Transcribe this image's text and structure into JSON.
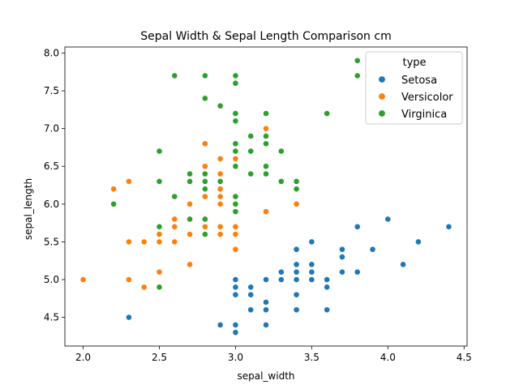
{
  "chart_data": {
    "type": "scatter",
    "title": "Sepal Width & Sepal Length Comparison cm",
    "xlabel": "sepal_width",
    "ylabel": "sepal_length",
    "xlim": [
      1.88,
      4.52
    ],
    "ylim": [
      4.12,
      8.08
    ],
    "xticks": [
      2.0,
      2.5,
      3.0,
      3.5,
      4.0,
      4.5
    ],
    "yticks": [
      4.5,
      5.0,
      5.5,
      6.0,
      6.5,
      7.0,
      7.5,
      8.0
    ],
    "grid": false,
    "legend": {
      "title": "type",
      "placement": "top-right"
    },
    "series": [
      {
        "name": "Setosa",
        "color": "#1f77b4",
        "points": [
          [
            3.5,
            5.1
          ],
          [
            3.0,
            4.9
          ],
          [
            3.2,
            4.7
          ],
          [
            3.1,
            4.6
          ],
          [
            3.6,
            5.0
          ],
          [
            3.9,
            5.4
          ],
          [
            3.4,
            4.6
          ],
          [
            3.4,
            5.0
          ],
          [
            2.9,
            4.4
          ],
          [
            3.1,
            4.9
          ],
          [
            3.7,
            5.4
          ],
          [
            3.4,
            4.8
          ],
          [
            3.0,
            4.8
          ],
          [
            3.0,
            4.3
          ],
          [
            4.0,
            5.8
          ],
          [
            4.4,
            5.7
          ],
          [
            3.9,
            5.4
          ],
          [
            3.5,
            5.1
          ],
          [
            3.8,
            5.7
          ],
          [
            3.8,
            5.1
          ],
          [
            3.4,
            5.4
          ],
          [
            3.7,
            5.1
          ],
          [
            3.6,
            4.6
          ],
          [
            3.3,
            5.1
          ],
          [
            3.4,
            4.8
          ],
          [
            3.0,
            5.0
          ],
          [
            3.4,
            5.0
          ],
          [
            3.5,
            5.2
          ],
          [
            3.4,
            5.2
          ],
          [
            3.2,
            4.7
          ],
          [
            3.1,
            4.8
          ],
          [
            3.4,
            5.4
          ],
          [
            4.1,
            5.2
          ],
          [
            4.2,
            5.5
          ],
          [
            3.1,
            4.9
          ],
          [
            3.2,
            5.0
          ],
          [
            3.5,
            5.5
          ],
          [
            3.6,
            4.9
          ],
          [
            3.0,
            4.4
          ],
          [
            3.4,
            5.1
          ],
          [
            3.5,
            5.0
          ],
          [
            2.3,
            4.5
          ],
          [
            3.2,
            4.4
          ],
          [
            3.5,
            5.0
          ],
          [
            3.8,
            5.1
          ],
          [
            3.0,
            4.8
          ],
          [
            3.8,
            5.1
          ],
          [
            3.2,
            4.6
          ],
          [
            3.7,
            5.3
          ],
          [
            3.3,
            5.0
          ]
        ]
      },
      {
        "name": "Versicolor",
        "color": "#ff7f0e",
        "points": [
          [
            3.2,
            7.0
          ],
          [
            3.2,
            6.4
          ],
          [
            3.1,
            6.9
          ],
          [
            2.3,
            5.5
          ],
          [
            2.8,
            6.5
          ],
          [
            2.8,
            5.7
          ],
          [
            3.3,
            6.3
          ],
          [
            2.4,
            4.9
          ],
          [
            2.9,
            6.6
          ],
          [
            2.7,
            5.2
          ],
          [
            2.0,
            5.0
          ],
          [
            3.0,
            5.9
          ],
          [
            2.2,
            6.0
          ],
          [
            2.9,
            6.1
          ],
          [
            2.9,
            5.6
          ],
          [
            3.1,
            6.7
          ],
          [
            3.0,
            5.6
          ],
          [
            2.7,
            5.8
          ],
          [
            2.2,
            6.2
          ],
          [
            2.5,
            5.6
          ],
          [
            3.2,
            5.9
          ],
          [
            2.8,
            6.1
          ],
          [
            2.5,
            6.3
          ],
          [
            2.8,
            6.1
          ],
          [
            2.9,
            6.4
          ],
          [
            3.0,
            6.6
          ],
          [
            2.8,
            6.8
          ],
          [
            3.0,
            6.7
          ],
          [
            2.9,
            6.0
          ],
          [
            2.6,
            5.7
          ],
          [
            2.4,
            5.5
          ],
          [
            2.4,
            5.5
          ],
          [
            2.7,
            5.8
          ],
          [
            2.7,
            6.0
          ],
          [
            3.0,
            5.4
          ],
          [
            3.4,
            6.0
          ],
          [
            3.1,
            6.7
          ],
          [
            2.3,
            6.3
          ],
          [
            3.0,
            5.6
          ],
          [
            2.5,
            5.5
          ],
          [
            2.6,
            5.5
          ],
          [
            3.0,
            6.1
          ],
          [
            2.6,
            5.8
          ],
          [
            2.3,
            5.0
          ],
          [
            2.7,
            5.6
          ],
          [
            3.0,
            5.7
          ],
          [
            2.9,
            5.7
          ],
          [
            2.9,
            6.2
          ],
          [
            2.5,
            5.1
          ],
          [
            2.8,
            5.7
          ]
        ]
      },
      {
        "name": "Virginica",
        "color": "#2ca02c",
        "points": [
          [
            3.3,
            6.3
          ],
          [
            2.7,
            5.8
          ],
          [
            3.0,
            7.1
          ],
          [
            2.9,
            6.3
          ],
          [
            3.0,
            6.5
          ],
          [
            3.0,
            7.6
          ],
          [
            2.5,
            4.9
          ],
          [
            2.9,
            7.3
          ],
          [
            2.5,
            6.7
          ],
          [
            3.6,
            7.2
          ],
          [
            3.2,
            6.5
          ],
          [
            2.7,
            6.4
          ],
          [
            3.0,
            6.8
          ],
          [
            2.5,
            5.7
          ],
          [
            2.8,
            5.8
          ],
          [
            3.2,
            6.4
          ],
          [
            3.0,
            6.5
          ],
          [
            3.8,
            7.7
          ],
          [
            2.6,
            7.7
          ],
          [
            2.2,
            6.0
          ],
          [
            3.2,
            6.9
          ],
          [
            2.8,
            5.6
          ],
          [
            2.8,
            7.7
          ],
          [
            2.7,
            6.3
          ],
          [
            3.3,
            6.7
          ],
          [
            3.2,
            7.2
          ],
          [
            2.8,
            6.2
          ],
          [
            3.0,
            6.1
          ],
          [
            2.8,
            6.4
          ],
          [
            3.0,
            7.2
          ],
          [
            2.8,
            7.4
          ],
          [
            3.8,
            7.9
          ],
          [
            2.8,
            6.4
          ],
          [
            2.8,
            6.3
          ],
          [
            2.6,
            6.1
          ],
          [
            3.0,
            7.7
          ],
          [
            3.4,
            6.3
          ],
          [
            3.1,
            6.4
          ],
          [
            3.0,
            6.0
          ],
          [
            3.1,
            6.9
          ],
          [
            3.1,
            6.7
          ],
          [
            3.1,
            6.9
          ],
          [
            2.7,
            5.8
          ],
          [
            3.2,
            6.8
          ],
          [
            3.3,
            6.7
          ],
          [
            3.0,
            6.7
          ],
          [
            2.5,
            6.3
          ],
          [
            3.0,
            6.5
          ],
          [
            3.4,
            6.2
          ],
          [
            3.0,
            5.9
          ]
        ]
      }
    ]
  }
}
